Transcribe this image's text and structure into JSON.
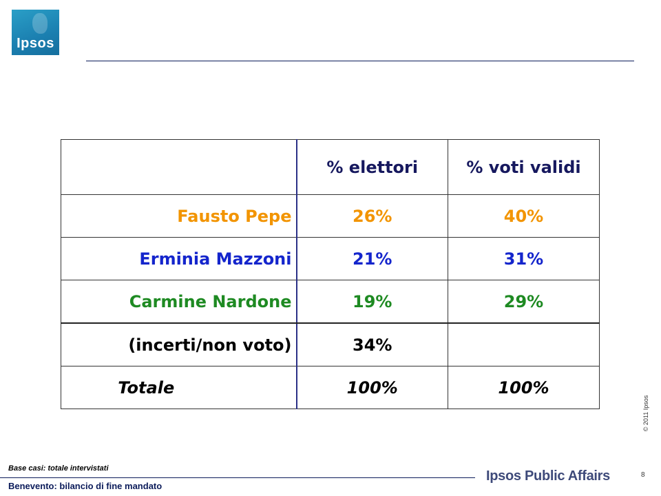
{
  "logo": {
    "text": "Ipsos"
  },
  "table": {
    "headers": [
      "",
      "% elettori",
      "% voti validi"
    ],
    "rows": [
      {
        "label": "Fausto Pepe",
        "elettori": "26%",
        "voti_validi": "40%"
      },
      {
        "label": "Erminia Mazzoni",
        "elettori": "21%",
        "voti_validi": "31%"
      },
      {
        "label": "Carmine Nardone",
        "elettori": "19%",
        "voti_validi": "29%"
      },
      {
        "label": "(incerti/non voto)",
        "elettori": "34%",
        "voti_validi": ""
      },
      {
        "label": "Totale",
        "elettori": "100%",
        "voti_validi": "100%"
      }
    ]
  },
  "colors": {
    "Fausto Pepe": "#f29400",
    "Erminia Mazzoni": "#1425cc",
    "Carmine Nardone": "#1e8a22",
    "header": "#16185e"
  },
  "footer": {
    "base": "Base casi: totale intervistati",
    "subtitle": "Benevento: bilancio di fine mandato",
    "brand": "Ipsos Public Affairs",
    "page": "8",
    "copyright": "© 2011 Ipsos"
  }
}
